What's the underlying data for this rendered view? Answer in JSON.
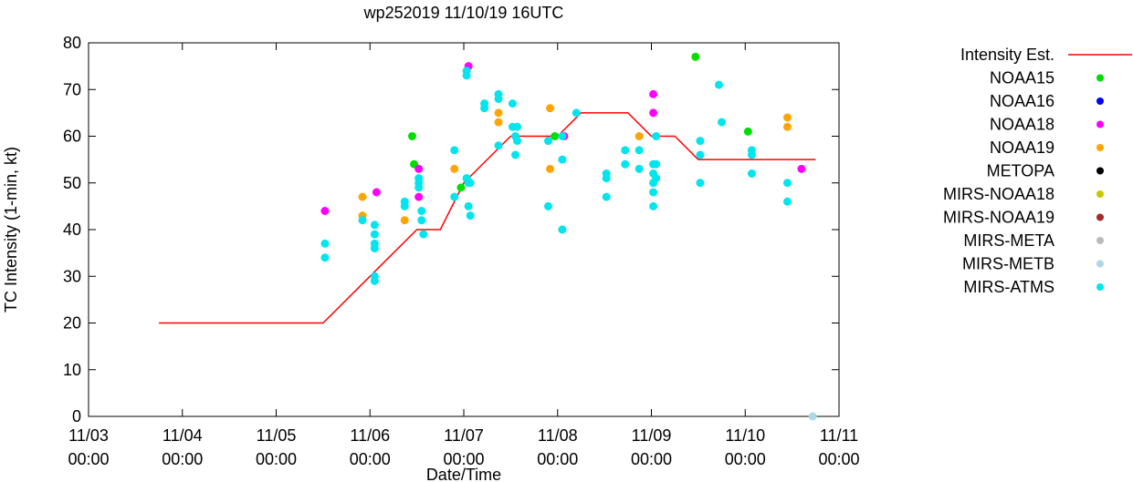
{
  "chart_data": {
    "type": "scatter",
    "title": "wp252019 11/10/19 16UTC",
    "xlabel": "Date/Time",
    "ylabel": "TC Intensity (1-min, kt)",
    "ylim": [
      0,
      80
    ],
    "yticks": [
      "0",
      "10",
      "20",
      "30",
      "40",
      "50",
      "60",
      "70",
      "80"
    ],
    "xlim": [
      0,
      8
    ],
    "xticks": [
      {
        "x": 0,
        "date": "11/03",
        "time": "00:00"
      },
      {
        "x": 1,
        "date": "11/04",
        "time": "00:00"
      },
      {
        "x": 2,
        "date": "11/05",
        "time": "00:00"
      },
      {
        "x": 3,
        "date": "11/06",
        "time": "00:00"
      },
      {
        "x": 4,
        "date": "11/07",
        "time": "00:00"
      },
      {
        "x": 5,
        "date": "11/08",
        "time": "00:00"
      },
      {
        "x": 6,
        "date": "11/09",
        "time": "00:00"
      },
      {
        "x": 7,
        "date": "11/10",
        "time": "00:00"
      },
      {
        "x": 8,
        "date": "11/11",
        "time": "00:00"
      }
    ],
    "legend_position": "right, outside plot",
    "series": [
      {
        "name": "Intensity Est.",
        "kind": "line",
        "color": "#ff0000",
        "x": [
          0.75,
          2.5,
          3.5,
          3.75,
          4.0,
          4.5,
          5.0,
          5.25,
          5.75,
          6.0,
          6.25,
          6.5,
          7.0,
          7.5,
          7.75
        ],
        "y": [
          20,
          20,
          40,
          40,
          50,
          60,
          60,
          65,
          65,
          60,
          60,
          55,
          55,
          55,
          55
        ]
      },
      {
        "name": "NOAA15",
        "kind": "points",
        "color": "#00dd00",
        "x": [
          3.47,
          3.97,
          4.97,
          6.47,
          7.03
        ],
        "y": [
          54,
          49,
          60,
          77,
          61
        ]
      },
      {
        "name": "NOAA15",
        "kind": "points",
        "color": "#00dd00",
        "x": [
          3.45
        ],
        "y": [
          60
        ]
      },
      {
        "name": "NOAA16",
        "kind": "points",
        "color": "#0000ff",
        "x": [],
        "y": []
      },
      {
        "name": "NOAA18",
        "kind": "points",
        "color": "#ff00ff",
        "x": [
          2.52,
          3.07,
          3.52,
          3.52,
          4.05,
          5.07,
          6.02,
          6.02,
          7.6
        ],
        "y": [
          44,
          48,
          53,
          47,
          75,
          60,
          69,
          65,
          53
        ]
      },
      {
        "name": "NOAA19",
        "kind": "points",
        "color": "#ffa500",
        "x": [
          2.92,
          2.92,
          3.37,
          3.9,
          4.37,
          4.37,
          4.92,
          4.92,
          5.87,
          7.45,
          7.45
        ],
        "y": [
          47,
          43,
          42,
          53,
          65,
          63,
          66,
          53,
          60,
          64,
          62
        ]
      },
      {
        "name": "METOPA",
        "kind": "points",
        "color": "#000000",
        "x": [],
        "y": []
      },
      {
        "name": "MIRS-NOAA18",
        "kind": "points",
        "color": "#c8c800",
        "x": [],
        "y": []
      },
      {
        "name": "MIRS-NOAA19",
        "kind": "points",
        "color": "#a52a2a",
        "x": [],
        "y": []
      },
      {
        "name": "MIRS-META",
        "kind": "points",
        "color": "#bbbbbb",
        "x": [],
        "y": []
      },
      {
        "name": "MIRS-METB",
        "kind": "points",
        "color": "#add8e6",
        "x": [
          7.72
        ],
        "y": [
          0
        ]
      },
      {
        "name": "MIRS-ATMS",
        "kind": "points",
        "color": "#00e5ee",
        "x": [
          2.52,
          2.52,
          2.92,
          3.05,
          3.05,
          3.05,
          3.05,
          3.05,
          3.05,
          3.37,
          3.37,
          3.52,
          3.52,
          3.52,
          3.55,
          3.55,
          3.57,
          3.9,
          3.9,
          4.03,
          4.03,
          4.03,
          4.05,
          4.05,
          4.07,
          4.07,
          4.22,
          4.22,
          4.37,
          4.37,
          4.37,
          4.52,
          4.52,
          4.55,
          4.55,
          4.57,
          4.57,
          4.9,
          4.9,
          5.05,
          5.05,
          5.05,
          5.2,
          5.52,
          5.52,
          5.52,
          5.72,
          5.72,
          5.87,
          5.87,
          6.02,
          6.02,
          6.02,
          6.02,
          6.02,
          6.05,
          6.05,
          6.05,
          6.52,
          6.52,
          6.52,
          6.72,
          6.75,
          7.07,
          7.07,
          7.07,
          7.45,
          7.45
        ],
        "y": [
          37,
          34,
          42,
          41,
          39,
          37,
          36,
          30,
          29,
          46,
          45,
          51,
          50,
          49,
          44,
          42,
          39,
          57,
          47,
          74,
          73,
          51,
          50,
          45,
          43,
          50,
          67,
          66,
          69,
          68,
          58,
          67,
          62,
          60,
          56,
          59,
          62,
          59,
          45,
          60,
          55,
          40,
          65,
          52,
          51,
          47,
          57,
          54,
          57,
          53,
          54,
          52,
          50,
          48,
          45,
          60,
          54,
          51,
          59,
          56,
          50,
          71,
          63,
          57,
          56,
          52,
          50,
          46
        ]
      }
    ]
  }
}
